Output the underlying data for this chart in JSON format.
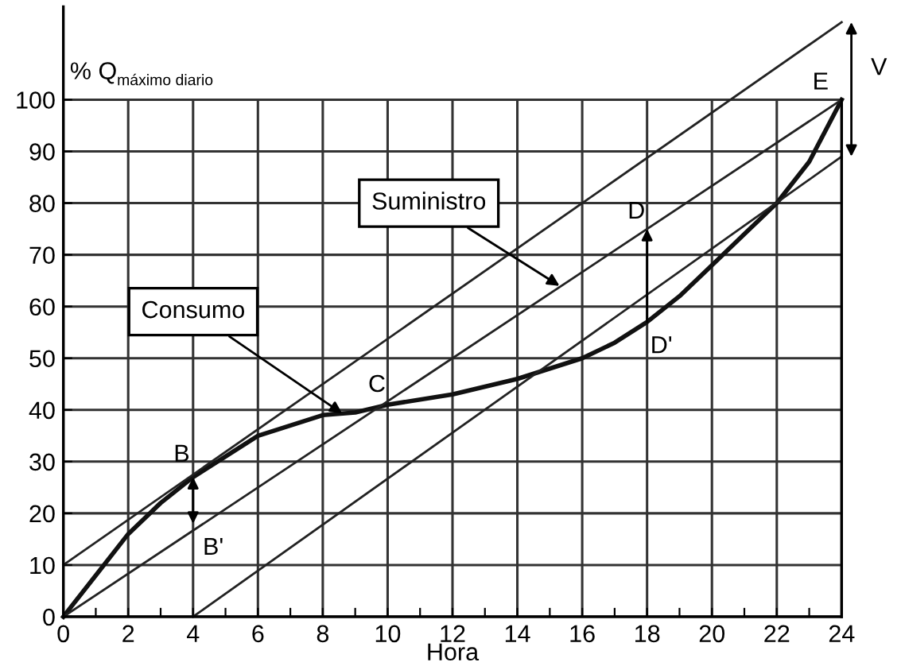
{
  "chart_data": {
    "type": "line",
    "xlabel": "Hora",
    "ylabel": "% Q$_{máximo diario}$",
    "xlim": [
      0,
      24
    ],
    "ylim": [
      0,
      118
    ],
    "xticks": [
      0,
      {
        "value": 1,
        "label": null
      },
      2,
      {
        "value": 3,
        "label": null
      },
      4,
      {
        "value": 5,
        "label": null
      },
      6,
      {
        "value": 7,
        "label": null
      },
      8,
      {
        "value": 9,
        "label": null
      },
      10,
      {
        "value": 11,
        "label": null
      },
      12,
      {
        "value": 13,
        "label": null
      },
      14,
      {
        "value": 15,
        "label": null
      },
      16,
      {
        "value": 17,
        "label": null
      },
      18,
      {
        "value": 19,
        "label": null
      },
      20,
      {
        "value": 21,
        "label": null
      },
      22,
      {
        "value": 23,
        "label": null
      },
      24
    ],
    "yticks": [
      0,
      10,
      20,
      30,
      40,
      50,
      60,
      70,
      80,
      90,
      100
    ],
    "grid": true,
    "marker": "none",
    "line_style": "solid",
    "series": [
      {
        "color": "#111111",
        "x": [
          0,
          1,
          2,
          3,
          4,
          5,
          6,
          7,
          8,
          9,
          10,
          12,
          14,
          16,
          17,
          18,
          19,
          20,
          21,
          22,
          23,
          24
        ],
        "values": [
          0,
          8,
          16,
          22,
          27,
          31,
          35,
          37,
          39,
          39.5,
          41,
          43,
          46,
          50,
          53,
          57,
          62,
          68,
          74,
          80,
          88,
          100
        ]
      },
      {
        "color": "#222222",
        "x": [
          0,
          24
        ],
        "values": [
          0,
          100
        ]
      },
      {
        "color": "#222222",
        "x": [
          0,
          24
        ],
        "values": [
          10,
          115
        ]
      },
      {
        "color": "#222222",
        "x": [
          4,
          24
        ],
        "values": [
          0,
          89
        ]
      }
    ],
    "annotations": [
      {
        "text": "Suministro",
        "x": 15.3,
        "y": 64
      },
      {
        "text": "Consumo",
        "x": 8.6,
        "y": 39.3
      },
      {
        "text": "B",
        "x": 4,
        "y": 27
      },
      {
        "text": "B'",
        "x": 4,
        "y": 18
      },
      {
        "text": "C",
        "x": 10,
        "y": 41
      },
      {
        "text": "D",
        "x": 18,
        "y": 75
      },
      {
        "text": "D'",
        "x": 18,
        "y": 57
      },
      {
        "text": "E",
        "x": 24,
        "y": 100
      },
      "V"
    ]
  }
}
